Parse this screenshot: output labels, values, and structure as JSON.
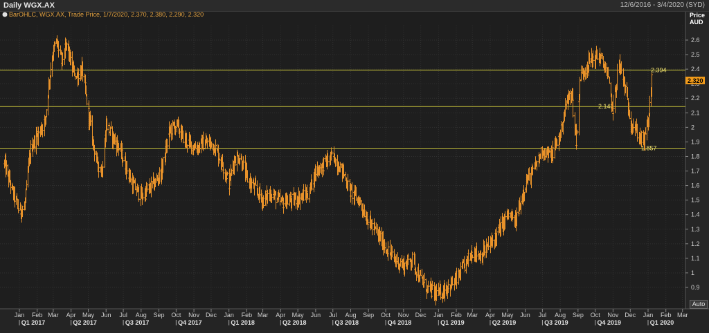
{
  "window": {
    "title": "Daily WGX.AX",
    "range": "12/6/2016 - 3/4/2020 (SYD)"
  },
  "legend": {
    "icon": "chart-series-icon",
    "text": "BarOHLC, WGX.AX, Trade Price, 1/7/2020, 2.370, 2.380, 2.290, 2.320"
  },
  "axis": {
    "header_line1": "Price",
    "header_line2": "AUD",
    "auto_label": "Auto",
    "last_price_label": "2.320"
  },
  "colors": {
    "background": "#1e1e1e",
    "series": "#e8922a",
    "hlines": "#c8c23a",
    "grid": "#303030",
    "last_price_badge": "#f09a1a"
  },
  "chart_data": {
    "type": "ohlc",
    "title": "Daily WGX.AX",
    "ylabel": "Price AUD",
    "ylim": [
      0.75,
      2.75
    ],
    "yticks": [
      0.9,
      1,
      1.1,
      1.2,
      1.3,
      1.4,
      1.5,
      1.6,
      1.7,
      1.8,
      1.9,
      2,
      2.1,
      2.2,
      2.3,
      2.4,
      2.5,
      2.6
    ],
    "grid": true,
    "last_price": 2.32,
    "horizontal_lines": [
      {
        "value": 2.394,
        "label": "2.394"
      },
      {
        "value": 2.143,
        "label": "2.143"
      },
      {
        "value": 1.857,
        "label": "1.857"
      }
    ],
    "months": [
      "Jan",
      "Feb",
      "Mar",
      "Apr",
      "May",
      "Jun",
      "Jul",
      "Aug",
      "Sep",
      "Oct",
      "Nov",
      "Dec",
      "Jan",
      "Feb",
      "Mar",
      "Apr",
      "May",
      "Jun",
      "Jul",
      "Aug",
      "Sep",
      "Oct",
      "Nov",
      "Dec",
      "Jan",
      "Feb",
      "Mar",
      "Apr",
      "May",
      "Jun",
      "Jul",
      "Aug",
      "Sep",
      "Oct",
      "Nov",
      "Dec",
      "Jan",
      "Feb",
      "Mar"
    ],
    "quarters": [
      "Q1 2017",
      "Q2 2017",
      "Q3 2017",
      "Q4 2017",
      "Q1 2018",
      "Q2 2018",
      "Q3 2018",
      "Q4 2018",
      "Q1 2019",
      "Q2 2019",
      "Q3 2019",
      "Q4 2019",
      "Q1 2020"
    ],
    "price_path": [
      [
        "2016-12-06",
        1.75
      ],
      [
        "2016-12-20",
        1.55
      ],
      [
        "2017-01-01",
        1.42
      ],
      [
        "2017-01-10",
        1.45
      ],
      [
        "2017-01-20",
        1.85
      ],
      [
        "2017-02-01",
        1.95
      ],
      [
        "2017-02-15",
        2.05
      ],
      [
        "2017-02-25",
        2.45
      ],
      [
        "2017-03-05",
        2.6
      ],
      [
        "2017-03-15",
        2.45
      ],
      [
        "2017-03-25",
        2.58
      ],
      [
        "2017-04-01",
        2.42
      ],
      [
        "2017-04-10",
        2.35
      ],
      [
        "2017-04-20",
        2.4
      ],
      [
        "2017-05-01",
        2.1
      ],
      [
        "2017-05-15",
        1.75
      ],
      [
        "2017-05-25",
        1.7
      ],
      [
        "2017-06-01",
        2.02
      ],
      [
        "2017-06-10",
        1.95
      ],
      [
        "2017-06-20",
        1.88
      ],
      [
        "2017-07-01",
        1.78
      ],
      [
        "2017-07-15",
        1.62
      ],
      [
        "2017-08-01",
        1.52
      ],
      [
        "2017-08-15",
        1.58
      ],
      [
        "2017-08-25",
        1.62
      ],
      [
        "2017-09-05",
        1.7
      ],
      [
        "2017-09-20",
        1.98
      ],
      [
        "2017-10-01",
        2.02
      ],
      [
        "2017-10-10",
        1.95
      ],
      [
        "2017-10-20",
        1.9
      ],
      [
        "2017-11-05",
        1.86
      ],
      [
        "2017-11-20",
        1.9
      ],
      [
        "2017-12-05",
        1.88
      ],
      [
        "2017-12-20",
        1.75
      ],
      [
        "2018-01-01",
        1.62
      ],
      [
        "2018-01-10",
        1.78
      ],
      [
        "2018-01-20",
        1.8
      ],
      [
        "2018-02-01",
        1.65
      ],
      [
        "2018-02-15",
        1.58
      ],
      [
        "2018-03-01",
        1.5
      ],
      [
        "2018-03-15",
        1.55
      ],
      [
        "2018-04-01",
        1.48
      ],
      [
        "2018-04-20",
        1.5
      ],
      [
        "2018-05-05",
        1.52
      ],
      [
        "2018-05-20",
        1.55
      ],
      [
        "2018-06-01",
        1.7
      ],
      [
        "2018-06-15",
        1.75
      ],
      [
        "2018-07-01",
        1.8
      ],
      [
        "2018-07-15",
        1.72
      ],
      [
        "2018-08-01",
        1.55
      ],
      [
        "2018-08-15",
        1.5
      ],
      [
        "2018-09-01",
        1.35
      ],
      [
        "2018-09-15",
        1.28
      ],
      [
        "2018-10-01",
        1.17
      ],
      [
        "2018-10-15",
        1.1
      ],
      [
        "2018-11-01",
        1.05
      ],
      [
        "2018-11-15",
        1.1
      ],
      [
        "2018-12-01",
        0.95
      ],
      [
        "2018-12-15",
        0.88
      ],
      [
        "2018-12-31",
        0.85
      ],
      [
        "2019-01-15",
        0.9
      ],
      [
        "2019-02-01",
        0.95
      ],
      [
        "2019-02-15",
        1.05
      ],
      [
        "2019-03-01",
        1.15
      ],
      [
        "2019-03-15",
        1.12
      ],
      [
        "2019-04-01",
        1.2
      ],
      [
        "2019-04-15",
        1.28
      ],
      [
        "2019-05-01",
        1.4
      ],
      [
        "2019-05-15",
        1.35
      ],
      [
        "2019-06-01",
        1.62
      ],
      [
        "2019-06-15",
        1.7
      ],
      [
        "2019-07-01",
        1.85
      ],
      [
        "2019-07-15",
        1.8
      ],
      [
        "2019-08-01",
        1.95
      ],
      [
        "2019-08-10",
        2.15
      ],
      [
        "2019-08-20",
        2.25
      ],
      [
        "2019-08-28",
        1.9
      ],
      [
        "2019-09-05",
        2.35
      ],
      [
        "2019-09-20",
        2.45
      ],
      [
        "2019-10-05",
        2.5
      ],
      [
        "2019-10-20",
        2.4
      ],
      [
        "2019-11-01",
        2.1
      ],
      [
        "2019-11-10",
        2.45
      ],
      [
        "2019-11-20",
        2.3
      ],
      [
        "2019-12-01",
        2.05
      ],
      [
        "2019-12-15",
        1.95
      ],
      [
        "2019-12-25",
        1.9
      ],
      [
        "2020-01-01",
        2.05
      ],
      [
        "2020-01-07",
        2.32
      ]
    ]
  }
}
